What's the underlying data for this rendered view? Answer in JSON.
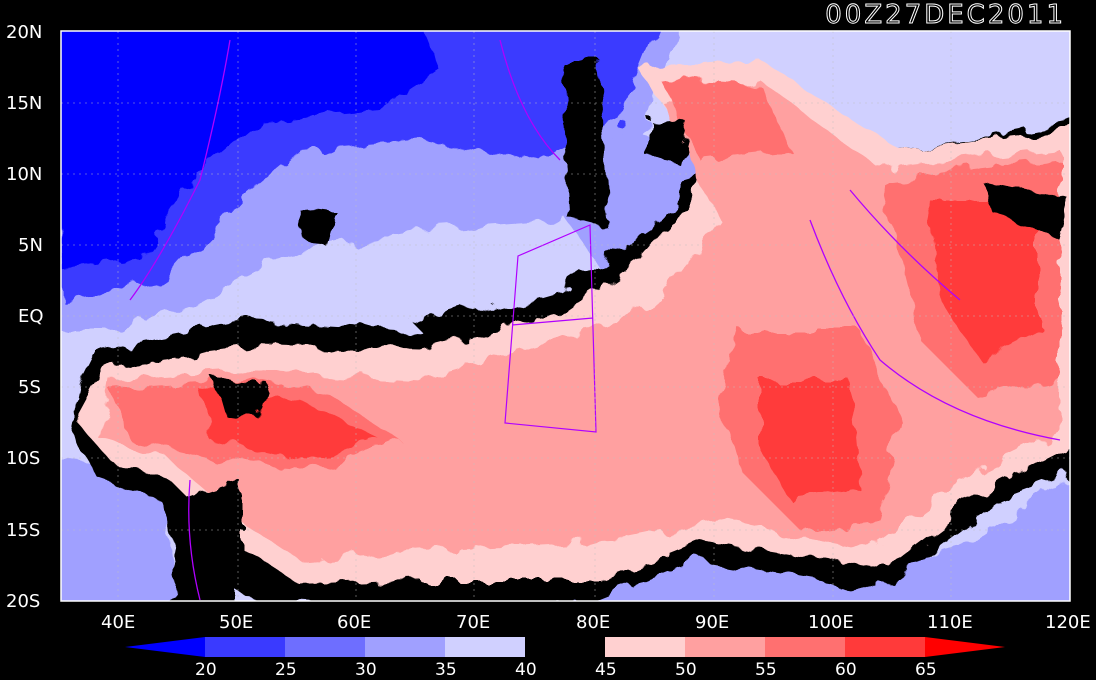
{
  "title": "00Z27DEC2011",
  "map": {
    "lon_range": [
      35,
      120
    ],
    "lat_range": [
      -20,
      20
    ],
    "lon_ticks": [
      "40E",
      "50E",
      "60E",
      "70E",
      "80E",
      "90E",
      "100E",
      "110E",
      "120E"
    ],
    "lat_ticks": [
      "20N",
      "15N",
      "10N",
      "5N",
      "EQ",
      "5S",
      "10S",
      "15S",
      "20S"
    ],
    "grid": "dotted"
  },
  "colorbar": {
    "labels": [
      "20",
      "25",
      "30",
      "35",
      "40",
      "45",
      "50",
      "55",
      "60",
      "65"
    ],
    "colors": [
      "#0000ff",
      "#3a3aff",
      "#6e6eff",
      "#a0a0ff",
      "#d0d0ff",
      "#000000",
      "#ffd0d0",
      "#ffa0a0",
      "#ff7070",
      "#ff3a3a",
      "#ff0000"
    ]
  }
}
